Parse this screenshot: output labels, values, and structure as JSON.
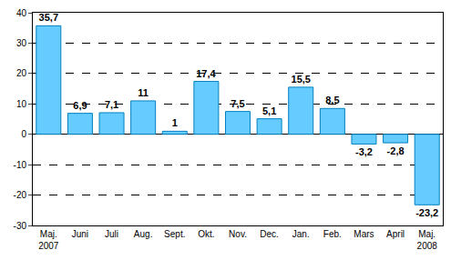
{
  "chart_data": {
    "type": "bar",
    "categories": [
      "Maj. 2007",
      "Juni",
      "Juli",
      "Aug.",
      "Sept.",
      "Okt.",
      "Nov.",
      "Dec.",
      "Jan.",
      "Feb.",
      "Mars",
      "April",
      "Maj. 2008"
    ],
    "values": [
      35.7,
      6.9,
      7.1,
      11,
      1,
      17.4,
      7.5,
      5.1,
      15.5,
      8.5,
      -3.2,
      -2.8,
      -23.2
    ],
    "value_labels": [
      "35,7",
      "6,9",
      "7,1",
      "11",
      "1",
      "17,4",
      "7,5",
      "5,1",
      "15,5",
      "8,5",
      "-3,2",
      "-2,8",
      "-23,2"
    ],
    "data_labels": true,
    "color": "#66ccff",
    "ylim": [
      -30,
      40
    ],
    "yticks": [
      -30,
      -20,
      -10,
      0,
      10,
      20,
      30,
      40
    ],
    "grid": true
  }
}
